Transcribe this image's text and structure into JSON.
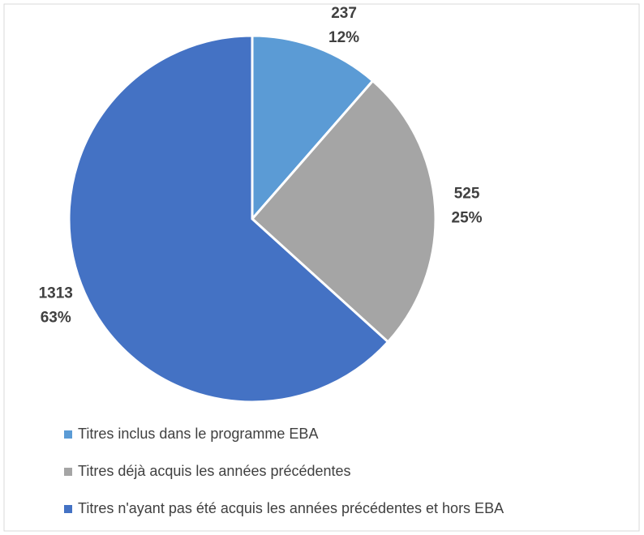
{
  "chart_data": {
    "type": "pie",
    "categories": [
      "Titres inclus dans le programme EBA",
      "Titres déjà acquis les années précédentes",
      "Titres n'ayant pas été acquis les années précédentes et hors EBA"
    ],
    "values": [
      237,
      525,
      1313
    ],
    "percent_labels": [
      "12%",
      "25%",
      "63%"
    ],
    "colors": [
      "#5b9bd5",
      "#a5a5a5",
      "#4472c4"
    ],
    "legend": "bottom"
  }
}
